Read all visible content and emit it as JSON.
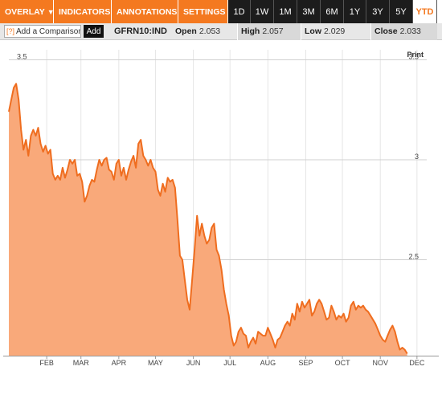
{
  "toolbar": {
    "menus": [
      {
        "label": "OVERLAY",
        "caret": "▼"
      },
      {
        "label": "INDICATORS",
        "caret": "▼"
      },
      {
        "label": "ANNOTATIONS",
        "caret": "▼"
      },
      {
        "label": "SETTINGS",
        "caret": "▼"
      }
    ],
    "ranges": [
      "1D",
      "1W",
      "1M",
      "3M",
      "6M",
      "1Y",
      "3Y",
      "5Y",
      "YTD"
    ],
    "active_range": "YTD"
  },
  "comparison": {
    "help": "[?]",
    "label": "Add a Comparison",
    "add_label": "Add"
  },
  "quote": {
    "ticker": "GFRN10:IND",
    "open_label": "Open",
    "open": "2.053",
    "high_label": "High",
    "high": "2.057",
    "low_label": "Low",
    "low": "2.029",
    "close_label": "Close",
    "close": "2.033"
  },
  "print_label": "Print",
  "colors": {
    "accent": "#f47920",
    "fill": "#f9a97a",
    "line": "#ef6d1f"
  },
  "chart_data": {
    "type": "area",
    "title": "",
    "xlabel": "",
    "ylabel": "",
    "ylim": [
      2.02,
      3.55
    ],
    "yticks": [
      "3.5",
      "3",
      "2.5"
    ],
    "ytick_values": [
      3.5,
      3.0,
      2.5
    ],
    "xticks": [
      "FEB",
      "MAR",
      "APR",
      "MAY",
      "JUN",
      "JUL",
      "AUG",
      "SEP",
      "OCT",
      "NOV",
      "DEC"
    ],
    "xtick_days": [
      32,
      60,
      91,
      121,
      152,
      182,
      213,
      244,
      274,
      305,
      335
    ],
    "xlim": [
      1,
      343
    ],
    "grid": true,
    "series": [
      {
        "points": [
          [
            1,
            3.24
          ],
          [
            3,
            3.3
          ],
          [
            5,
            3.36
          ],
          [
            7,
            3.38
          ],
          [
            9,
            3.3
          ],
          [
            11,
            3.15
          ],
          [
            13,
            3.05
          ],
          [
            15,
            3.1
          ],
          [
            17,
            3.02
          ],
          [
            19,
            3.12
          ],
          [
            21,
            3.15
          ],
          [
            23,
            3.12
          ],
          [
            25,
            3.16
          ],
          [
            27,
            3.08
          ],
          [
            29,
            3.04
          ],
          [
            31,
            3.07
          ],
          [
            33,
            3.03
          ],
          [
            35,
            3.05
          ],
          [
            37,
            2.93
          ],
          [
            39,
            2.9
          ],
          [
            41,
            2.92
          ],
          [
            43,
            2.9
          ],
          [
            45,
            2.96
          ],
          [
            47,
            2.91
          ],
          [
            49,
            2.95
          ],
          [
            51,
            3.0
          ],
          [
            53,
            2.98
          ],
          [
            55,
            3.0
          ],
          [
            57,
            2.92
          ],
          [
            59,
            2.93
          ],
          [
            61,
            2.89
          ],
          [
            63,
            2.79
          ],
          [
            65,
            2.82
          ],
          [
            67,
            2.87
          ],
          [
            69,
            2.9
          ],
          [
            71,
            2.89
          ],
          [
            73,
            2.95
          ],
          [
            75,
            3.0
          ],
          [
            77,
            2.97
          ],
          [
            79,
            3.0
          ],
          [
            81,
            3.01
          ],
          [
            83,
            2.95
          ],
          [
            85,
            2.94
          ],
          [
            87,
            2.9
          ],
          [
            89,
            2.98
          ],
          [
            91,
            3.0
          ],
          [
            93,
            2.92
          ],
          [
            95,
            2.96
          ],
          [
            97,
            2.9
          ],
          [
            99,
            2.95
          ],
          [
            101,
            2.99
          ],
          [
            103,
            3.02
          ],
          [
            105,
            2.96
          ],
          [
            107,
            3.08
          ],
          [
            109,
            3.1
          ],
          [
            111,
            3.02
          ],
          [
            113,
            3.0
          ],
          [
            115,
            2.97
          ],
          [
            117,
            3.0
          ],
          [
            119,
            2.96
          ],
          [
            121,
            2.94
          ],
          [
            123,
            2.85
          ],
          [
            125,
            2.82
          ],
          [
            127,
            2.88
          ],
          [
            129,
            2.84
          ],
          [
            131,
            2.91
          ],
          [
            133,
            2.89
          ],
          [
            135,
            2.9
          ],
          [
            137,
            2.86
          ],
          [
            139,
            2.7
          ],
          [
            141,
            2.52
          ],
          [
            143,
            2.5
          ],
          [
            145,
            2.4
          ],
          [
            147,
            2.3
          ],
          [
            149,
            2.25
          ],
          [
            151,
            2.4
          ],
          [
            153,
            2.55
          ],
          [
            155,
            2.72
          ],
          [
            157,
            2.62
          ],
          [
            159,
            2.68
          ],
          [
            161,
            2.62
          ],
          [
            163,
            2.58
          ],
          [
            165,
            2.6
          ],
          [
            167,
            2.66
          ],
          [
            169,
            2.68
          ],
          [
            171,
            2.55
          ],
          [
            173,
            2.52
          ],
          [
            175,
            2.45
          ],
          [
            177,
            2.35
          ],
          [
            179,
            2.28
          ],
          [
            181,
            2.22
          ],
          [
            183,
            2.12
          ],
          [
            185,
            2.07
          ],
          [
            187,
            2.09
          ],
          [
            189,
            2.14
          ],
          [
            191,
            2.16
          ],
          [
            193,
            2.13
          ],
          [
            195,
            2.12
          ],
          [
            197,
            2.06
          ],
          [
            199,
            2.09
          ],
          [
            201,
            2.11
          ],
          [
            203,
            2.08
          ],
          [
            205,
            2.14
          ],
          [
            207,
            2.13
          ],
          [
            209,
            2.12
          ],
          [
            211,
            2.12
          ],
          [
            213,
            2.16
          ],
          [
            215,
            2.13
          ],
          [
            217,
            2.1
          ],
          [
            219,
            2.06
          ],
          [
            221,
            2.1
          ],
          [
            223,
            2.11
          ],
          [
            225,
            2.14
          ],
          [
            227,
            2.17
          ],
          [
            229,
            2.19
          ],
          [
            231,
            2.17
          ],
          [
            233,
            2.23
          ],
          [
            235,
            2.2
          ],
          [
            237,
            2.28
          ],
          [
            239,
            2.24
          ],
          [
            241,
            2.29
          ],
          [
            243,
            2.26
          ],
          [
            245,
            2.28
          ],
          [
            247,
            2.3
          ],
          [
            249,
            2.22
          ],
          [
            251,
            2.24
          ],
          [
            253,
            2.28
          ],
          [
            255,
            2.3
          ],
          [
            257,
            2.28
          ],
          [
            259,
            2.24
          ],
          [
            261,
            2.2
          ],
          [
            263,
            2.21
          ],
          [
            265,
            2.27
          ],
          [
            267,
            2.24
          ],
          [
            269,
            2.2
          ],
          [
            271,
            2.22
          ],
          [
            273,
            2.21
          ],
          [
            275,
            2.23
          ],
          [
            277,
            2.19
          ],
          [
            279,
            2.21
          ],
          [
            281,
            2.27
          ],
          [
            283,
            2.29
          ],
          [
            285,
            2.25
          ],
          [
            287,
            2.27
          ],
          [
            289,
            2.26
          ],
          [
            291,
            2.27
          ],
          [
            293,
            2.25
          ],
          [
            295,
            2.24
          ],
          [
            297,
            2.22
          ],
          [
            299,
            2.2
          ],
          [
            301,
            2.18
          ],
          [
            303,
            2.15
          ],
          [
            305,
            2.12
          ],
          [
            307,
            2.1
          ],
          [
            309,
            2.09
          ],
          [
            311,
            2.12
          ],
          [
            313,
            2.15
          ],
          [
            315,
            2.17
          ],
          [
            317,
            2.14
          ],
          [
            319,
            2.09
          ],
          [
            321,
            2.05
          ],
          [
            323,
            2.06
          ],
          [
            325,
            2.05
          ],
          [
            327,
            2.03
          ]
        ]
      }
    ]
  }
}
